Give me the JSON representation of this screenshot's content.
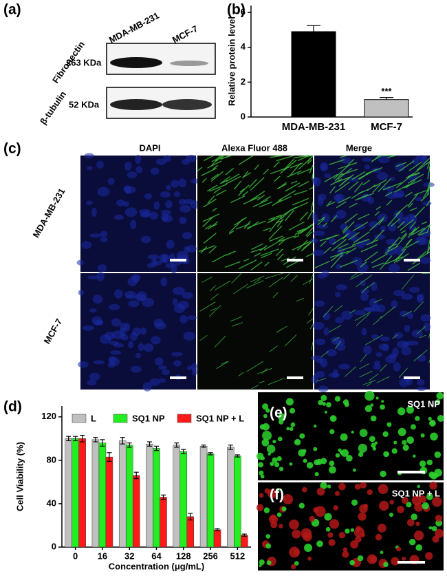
{
  "panel_labels": [
    "(a)",
    "(b)",
    "(c)",
    "(d)",
    "(e)",
    "(f)"
  ],
  "western_blot": {
    "lanes": [
      "MDA-MB-231",
      "MCF-7"
    ],
    "proteins": [
      {
        "name": "Fibronectin",
        "size": "263 KDa"
      },
      {
        "name": "β-tubulin",
        "size": "52 KDa"
      }
    ]
  },
  "microscopy": {
    "columns": [
      "DAPI",
      "Alexa Fluor 488",
      "Merge"
    ],
    "rows": [
      "MDA-MB-231",
      "MCF-7"
    ]
  },
  "live_dead": {
    "titles": [
      "SQ1 NP",
      "SQ1 NP + L"
    ]
  },
  "chart_data": [
    {
      "type": "bar",
      "y_label": "Relative protein level",
      "categories": [
        "MDA-MB-231",
        "MCF-7"
      ],
      "values": [
        4.9,
        1.0
      ],
      "errors": [
        0.35,
        0.12
      ],
      "colors": [
        "#000000",
        "#c0c0c0"
      ],
      "annotation": "***",
      "ylim": [
        0,
        6.4
      ],
      "yticks": [
        0,
        2,
        4,
        6
      ]
    },
    {
      "type": "bar",
      "y_label": "Cell Viability (%)",
      "x_label": "Concentration (μg/mL)",
      "categories": [
        "0",
        "16",
        "32",
        "64",
        "128",
        "256",
        "512"
      ],
      "series": [
        {
          "name": "L",
          "color": "#c0c0c0",
          "values": [
            100,
            99,
            98,
            95,
            94,
            93,
            92
          ],
          "errors": [
            2,
            2,
            3,
            2,
            2,
            1,
            2
          ]
        },
        {
          "name": "SQ1 NP",
          "color": "#22ee22",
          "values": [
            100,
            96,
            94,
            91,
            88,
            86,
            84
          ],
          "errors": [
            2,
            3,
            2,
            2,
            2,
            1,
            1
          ]
        },
        {
          "name": "SQ1 NP + L",
          "color": "#ff1a1a",
          "values": [
            100,
            83,
            66,
            46,
            28,
            16,
            11
          ],
          "errors": [
            3,
            4,
            3,
            2,
            3,
            1,
            1
          ]
        }
      ],
      "ylim": [
        0,
        130
      ],
      "yticks": [
        0,
        40,
        80,
        120
      ]
    }
  ]
}
